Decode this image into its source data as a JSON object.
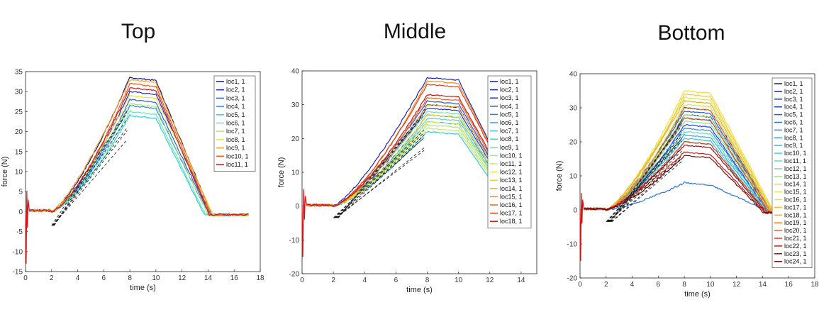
{
  "titles": [
    "Top",
    "Middle",
    "Bottom"
  ],
  "chart_data": [
    {
      "type": "line",
      "title": "Top",
      "xlabel": "time (s)",
      "ylabel": "force (N)",
      "xlim": [
        0,
        18
      ],
      "ylim": [
        -15,
        35
      ],
      "xticks": [
        0,
        2,
        4,
        6,
        8,
        10,
        12,
        14,
        16,
        18
      ],
      "yticks": [
        -15,
        -10,
        -5,
        0,
        5,
        10,
        15,
        20,
        25,
        30,
        35
      ],
      "legend_position": "top-right",
      "series": [
        {
          "name": "loc1, 1",
          "color": "#0d1a8a",
          "peak": 33.5,
          "descent_end": 14.2
        },
        {
          "name": "loc2, 1",
          "color": "#1c2bd6",
          "peak": 30.0,
          "descent_end": 14.1
        },
        {
          "name": "loc3, 1",
          "color": "#2a62e6",
          "peak": 28.0,
          "descent_end": 14.0
        },
        {
          "name": "loc4, 1",
          "color": "#2c8ee8",
          "peak": 26.5,
          "descent_end": 13.9
        },
        {
          "name": "loc5, 1",
          "color": "#33d0d8",
          "peak": 24.0,
          "descent_end": 13.6
        },
        {
          "name": "loc6, 1",
          "color": "#64e8b8",
          "peak": 25.0,
          "descent_end": 13.7
        },
        {
          "name": "loc7, 1",
          "color": "#b2e86a",
          "peak": 27.0,
          "descent_end": 13.9
        },
        {
          "name": "loc8, 1",
          "color": "#f0e23a",
          "peak": 29.0,
          "descent_end": 14.3
        },
        {
          "name": "loc9, 1",
          "color": "#f5a020",
          "peak": 33.0,
          "descent_end": 14.2
        },
        {
          "name": "loc10, 1",
          "color": "#f05a1a",
          "peak": 32.0,
          "descent_end": 14.1
        },
        {
          "name": "loc11, 1",
          "color": "#d01818",
          "peak": 31.0,
          "descent_end": 14.0
        }
      ]
    },
    {
      "type": "line",
      "title": "Middle",
      "xlabel": "time (s)",
      "ylabel": "force (N)",
      "xlim": [
        0,
        15
      ],
      "ylim": [
        -20,
        40
      ],
      "xticks": [
        0,
        2,
        4,
        6,
        8,
        10,
        12,
        14
      ],
      "yticks": [
        -20,
        -10,
        0,
        10,
        20,
        30,
        40
      ],
      "legend_position": "top-right",
      "series": [
        {
          "name": "loc1, 1",
          "color": "#0d1a8a",
          "peak": 30.0,
          "descent_end": 13.8
        },
        {
          "name": "loc2, 1",
          "color": "#1a26b8",
          "peak": 38.0,
          "descent_end": 14.0
        },
        {
          "name": "loc3, 1",
          "color": "#2034d8",
          "peak": 29.0,
          "descent_end": 13.7
        },
        {
          "name": "loc4, 1",
          "color": "#2456e4",
          "peak": 31.0,
          "descent_end": 13.8
        },
        {
          "name": "loc5, 1",
          "color": "#2a7ae8",
          "peak": 27.0,
          "descent_end": 13.6
        },
        {
          "name": "loc6, 1",
          "color": "#2ea2e6",
          "peak": 25.0,
          "descent_end": 13.5
        },
        {
          "name": "loc7, 1",
          "color": "#33c8e0",
          "peak": 22.0,
          "descent_end": 13.2
        },
        {
          "name": "loc8, 1",
          "color": "#4ad8c4",
          "peak": 26.0,
          "descent_end": 13.5
        },
        {
          "name": "loc9, 1",
          "color": "#6ce4a4",
          "peak": 28.0,
          "descent_end": 13.6
        },
        {
          "name": "loc10, 1",
          "color": "#98ec7e",
          "peak": 24.0,
          "descent_end": 13.4
        },
        {
          "name": "loc11, 1",
          "color": "#c4ec58",
          "peak": 23.0,
          "descent_end": 13.3
        },
        {
          "name": "loc12, 1",
          "color": "#e6e63a",
          "peak": 25.0,
          "descent_end": 13.5
        },
        {
          "name": "loc13, 1",
          "color": "#f6d02a",
          "peak": 27.0,
          "descent_end": 13.7
        },
        {
          "name": "loc14, 1",
          "color": "#f8b020",
          "peak": 30.0,
          "descent_end": 13.8
        },
        {
          "name": "loc15, 1",
          "color": "#f48a1c",
          "peak": 37.0,
          "descent_end": 14.0
        },
        {
          "name": "loc16, 1",
          "color": "#ee641a",
          "peak": 32.0,
          "descent_end": 13.9
        },
        {
          "name": "loc17, 1",
          "color": "#e23c18",
          "peak": 36.0,
          "descent_end": 14.0
        },
        {
          "name": "loc18, 1",
          "color": "#c81414",
          "peak": 33.0,
          "descent_end": 13.9
        }
      ]
    },
    {
      "type": "line",
      "title": "Bottom",
      "xlabel": "time (s)",
      "ylabel": "force (N)",
      "xlim": [
        0,
        18
      ],
      "ylim": [
        -20,
        40
      ],
      "xticks": [
        0,
        2,
        4,
        6,
        8,
        10,
        12,
        14,
        16,
        18
      ],
      "yticks": [
        -20,
        -10,
        0,
        10,
        20,
        30,
        40
      ],
      "legend_position": "top-right",
      "series": [
        {
          "name": "loc1, 1",
          "color": "#0d1a8a",
          "peak": 28.0,
          "descent_end": 14.5
        },
        {
          "name": "loc2, 1",
          "color": "#1622a8",
          "peak": 30.0,
          "descent_end": 14.6
        },
        {
          "name": "loc3, 1",
          "color": "#1c30c8",
          "peak": 27.0,
          "descent_end": 14.4
        },
        {
          "name": "loc4, 1",
          "color": "#2040dc",
          "peak": 25.0,
          "descent_end": 14.3
        },
        {
          "name": "loc5, 1",
          "color": "#2458e2",
          "peak": 29.0,
          "descent_end": 14.5
        },
        {
          "name": "loc6, 1",
          "color": "#2872e6",
          "peak": 8.0,
          "descent_end": 14.2
        },
        {
          "name": "loc7, 1",
          "color": "#2c8ce8",
          "peak": 24.0,
          "descent_end": 14.3
        },
        {
          "name": "loc8, 1",
          "color": "#30a8e6",
          "peak": 22.0,
          "descent_end": 14.2
        },
        {
          "name": "loc9, 1",
          "color": "#34c2e2",
          "peak": 21.0,
          "descent_end": 14.1
        },
        {
          "name": "loc10, 1",
          "color": "#44d6cc",
          "peak": 20.0,
          "descent_end": 14.0
        },
        {
          "name": "loc11, 1",
          "color": "#5ce0b4",
          "peak": 23.0,
          "descent_end": 14.2
        },
        {
          "name": "loc12, 1",
          "color": "#7ae69a",
          "peak": 26.0,
          "descent_end": 14.4
        },
        {
          "name": "loc13, 1",
          "color": "#9cea7c",
          "peak": 28.0,
          "descent_end": 14.5
        },
        {
          "name": "loc14, 1",
          "color": "#bcec60",
          "peak": 31.0,
          "descent_end": 14.6
        },
        {
          "name": "loc15, 1",
          "color": "#dae848",
          "peak": 33.0,
          "descent_end": 14.7
        },
        {
          "name": "loc16, 1",
          "color": "#f0de36",
          "peak": 35.0,
          "descent_end": 14.8
        },
        {
          "name": "loc17, 1",
          "color": "#f8c428",
          "peak": 34.0,
          "descent_end": 14.7
        },
        {
          "name": "loc18, 1",
          "color": "#f8a420",
          "peak": 32.0,
          "descent_end": 14.6
        },
        {
          "name": "loc19, 1",
          "color": "#f4821c",
          "peak": 30.0,
          "descent_end": 14.5
        },
        {
          "name": "loc20, 1",
          "color": "#ec5e1a",
          "peak": 27.0,
          "descent_end": 14.4
        },
        {
          "name": "loc21, 1",
          "color": "#e03818",
          "peak": 20.0,
          "descent_end": 14.2
        },
        {
          "name": "loc22, 1",
          "color": "#c81a16",
          "peak": 17.0,
          "descent_end": 14.0
        },
        {
          "name": "loc23, 1",
          "color": "#a01010",
          "peak": 19.0,
          "descent_end": 14.1
        },
        {
          "name": "loc24, 1",
          "color": "#7a0a0a",
          "peak": 16.0,
          "descent_end": 13.9
        }
      ]
    }
  ]
}
